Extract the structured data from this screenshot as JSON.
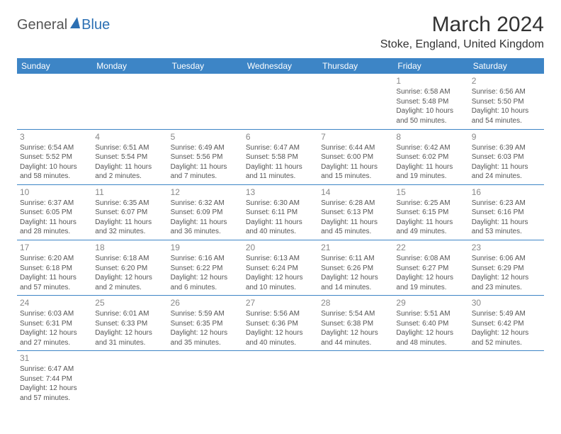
{
  "brand": {
    "part1": "General",
    "part2": "Blue"
  },
  "title": "March 2024",
  "location": "Stoke, England, United Kingdom",
  "colors": {
    "header_bg": "#3d85c6",
    "header_fg": "#ffffff",
    "brand_accent": "#2b6fb3",
    "text": "#555555",
    "daynum": "#888888",
    "divider": "#3d85c6"
  },
  "dayHeaders": [
    "Sunday",
    "Monday",
    "Tuesday",
    "Wednesday",
    "Thursday",
    "Friday",
    "Saturday"
  ],
  "weeks": [
    [
      null,
      null,
      null,
      null,
      null,
      {
        "n": "1",
        "sr": "Sunrise: 6:58 AM",
        "ss": "Sunset: 5:48 PM",
        "dl": "Daylight: 10 hours and 50 minutes."
      },
      {
        "n": "2",
        "sr": "Sunrise: 6:56 AM",
        "ss": "Sunset: 5:50 PM",
        "dl": "Daylight: 10 hours and 54 minutes."
      }
    ],
    [
      {
        "n": "3",
        "sr": "Sunrise: 6:54 AM",
        "ss": "Sunset: 5:52 PM",
        "dl": "Daylight: 10 hours and 58 minutes."
      },
      {
        "n": "4",
        "sr": "Sunrise: 6:51 AM",
        "ss": "Sunset: 5:54 PM",
        "dl": "Daylight: 11 hours and 2 minutes."
      },
      {
        "n": "5",
        "sr": "Sunrise: 6:49 AM",
        "ss": "Sunset: 5:56 PM",
        "dl": "Daylight: 11 hours and 7 minutes."
      },
      {
        "n": "6",
        "sr": "Sunrise: 6:47 AM",
        "ss": "Sunset: 5:58 PM",
        "dl": "Daylight: 11 hours and 11 minutes."
      },
      {
        "n": "7",
        "sr": "Sunrise: 6:44 AM",
        "ss": "Sunset: 6:00 PM",
        "dl": "Daylight: 11 hours and 15 minutes."
      },
      {
        "n": "8",
        "sr": "Sunrise: 6:42 AM",
        "ss": "Sunset: 6:02 PM",
        "dl": "Daylight: 11 hours and 19 minutes."
      },
      {
        "n": "9",
        "sr": "Sunrise: 6:39 AM",
        "ss": "Sunset: 6:03 PM",
        "dl": "Daylight: 11 hours and 24 minutes."
      }
    ],
    [
      {
        "n": "10",
        "sr": "Sunrise: 6:37 AM",
        "ss": "Sunset: 6:05 PM",
        "dl": "Daylight: 11 hours and 28 minutes."
      },
      {
        "n": "11",
        "sr": "Sunrise: 6:35 AM",
        "ss": "Sunset: 6:07 PM",
        "dl": "Daylight: 11 hours and 32 minutes."
      },
      {
        "n": "12",
        "sr": "Sunrise: 6:32 AM",
        "ss": "Sunset: 6:09 PM",
        "dl": "Daylight: 11 hours and 36 minutes."
      },
      {
        "n": "13",
        "sr": "Sunrise: 6:30 AM",
        "ss": "Sunset: 6:11 PM",
        "dl": "Daylight: 11 hours and 40 minutes."
      },
      {
        "n": "14",
        "sr": "Sunrise: 6:28 AM",
        "ss": "Sunset: 6:13 PM",
        "dl": "Daylight: 11 hours and 45 minutes."
      },
      {
        "n": "15",
        "sr": "Sunrise: 6:25 AM",
        "ss": "Sunset: 6:15 PM",
        "dl": "Daylight: 11 hours and 49 minutes."
      },
      {
        "n": "16",
        "sr": "Sunrise: 6:23 AM",
        "ss": "Sunset: 6:16 PM",
        "dl": "Daylight: 11 hours and 53 minutes."
      }
    ],
    [
      {
        "n": "17",
        "sr": "Sunrise: 6:20 AM",
        "ss": "Sunset: 6:18 PM",
        "dl": "Daylight: 11 hours and 57 minutes."
      },
      {
        "n": "18",
        "sr": "Sunrise: 6:18 AM",
        "ss": "Sunset: 6:20 PM",
        "dl": "Daylight: 12 hours and 2 minutes."
      },
      {
        "n": "19",
        "sr": "Sunrise: 6:16 AM",
        "ss": "Sunset: 6:22 PM",
        "dl": "Daylight: 12 hours and 6 minutes."
      },
      {
        "n": "20",
        "sr": "Sunrise: 6:13 AM",
        "ss": "Sunset: 6:24 PM",
        "dl": "Daylight: 12 hours and 10 minutes."
      },
      {
        "n": "21",
        "sr": "Sunrise: 6:11 AM",
        "ss": "Sunset: 6:26 PM",
        "dl": "Daylight: 12 hours and 14 minutes."
      },
      {
        "n": "22",
        "sr": "Sunrise: 6:08 AM",
        "ss": "Sunset: 6:27 PM",
        "dl": "Daylight: 12 hours and 19 minutes."
      },
      {
        "n": "23",
        "sr": "Sunrise: 6:06 AM",
        "ss": "Sunset: 6:29 PM",
        "dl": "Daylight: 12 hours and 23 minutes."
      }
    ],
    [
      {
        "n": "24",
        "sr": "Sunrise: 6:03 AM",
        "ss": "Sunset: 6:31 PM",
        "dl": "Daylight: 12 hours and 27 minutes."
      },
      {
        "n": "25",
        "sr": "Sunrise: 6:01 AM",
        "ss": "Sunset: 6:33 PM",
        "dl": "Daylight: 12 hours and 31 minutes."
      },
      {
        "n": "26",
        "sr": "Sunrise: 5:59 AM",
        "ss": "Sunset: 6:35 PM",
        "dl": "Daylight: 12 hours and 35 minutes."
      },
      {
        "n": "27",
        "sr": "Sunrise: 5:56 AM",
        "ss": "Sunset: 6:36 PM",
        "dl": "Daylight: 12 hours and 40 minutes."
      },
      {
        "n": "28",
        "sr": "Sunrise: 5:54 AM",
        "ss": "Sunset: 6:38 PM",
        "dl": "Daylight: 12 hours and 44 minutes."
      },
      {
        "n": "29",
        "sr": "Sunrise: 5:51 AM",
        "ss": "Sunset: 6:40 PM",
        "dl": "Daylight: 12 hours and 48 minutes."
      },
      {
        "n": "30",
        "sr": "Sunrise: 5:49 AM",
        "ss": "Sunset: 6:42 PM",
        "dl": "Daylight: 12 hours and 52 minutes."
      }
    ],
    [
      {
        "n": "31",
        "sr": "Sunrise: 6:47 AM",
        "ss": "Sunset: 7:44 PM",
        "dl": "Daylight: 12 hours and 57 minutes."
      },
      null,
      null,
      null,
      null,
      null,
      null
    ]
  ]
}
